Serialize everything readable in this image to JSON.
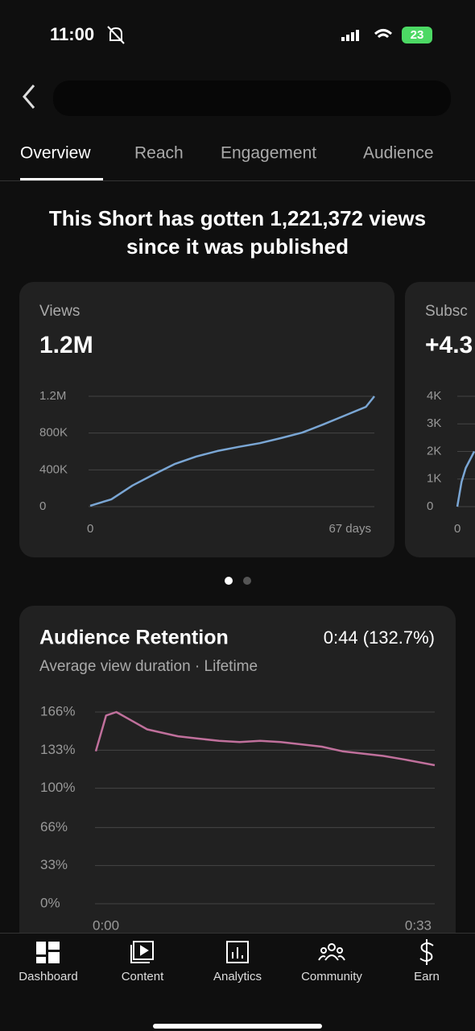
{
  "status_bar": {
    "time": "11:00",
    "battery": "23"
  },
  "tabs": [
    "Overview",
    "Reach",
    "Engagement",
    "Audience"
  ],
  "headline": [
    "This Short has gotten 1,221,372 views",
    "since it was published"
  ],
  "cards": [
    {
      "type": "line",
      "title": "Views",
      "value": "1.2M",
      "color": "#7aa6d4",
      "x": [
        0,
        5,
        10,
        15,
        20,
        25,
        30,
        35,
        40,
        45,
        50,
        55,
        60,
        65,
        67
      ],
      "values": [
        10000,
        80000,
        230000,
        350000,
        465000,
        545000,
        605000,
        650000,
        690000,
        745000,
        805000,
        895000,
        990000,
        1085000,
        1200000
      ],
      "xlim": [
        0,
        67
      ],
      "xticks": [
        0,
        {
          "value": 67,
          "label": "67 days"
        }
      ],
      "ylim": [
        0,
        1200000
      ],
      "yticks": [
        0,
        {
          "value": 400000,
          "label": "400K"
        },
        {
          "value": 800000,
          "label": "800K"
        },
        {
          "value": 1200000,
          "label": "1.2M"
        }
      ]
    },
    {
      "type": "line",
      "title": "Subsc",
      "value": "+4.3",
      "color": "#7aa6d4",
      "x": [
        0,
        1,
        2,
        4
      ],
      "values": [
        0,
        900,
        1400,
        2000
      ],
      "xlim": [
        0,
        67
      ],
      "xticks": [
        0
      ],
      "ylim": [
        0,
        4000
      ],
      "yticks": [
        0,
        {
          "value": 1000,
          "label": "1K"
        },
        {
          "value": 2000,
          "label": "2K"
        },
        {
          "value": 3000,
          "label": "3K"
        },
        {
          "value": 4000,
          "label": "4K"
        }
      ]
    }
  ],
  "retention": {
    "type": "line",
    "title": "Audience Retention",
    "value": "0:44 (132.7%)",
    "subtitle": "Average view duration · Lifetime",
    "color": "#c0709c",
    "x": [
      0,
      1,
      2,
      3,
      4,
      5,
      6,
      8,
      10,
      12,
      14,
      16,
      18,
      20,
      22,
      24,
      26,
      28,
      30,
      33
    ],
    "values": [
      132,
      163,
      166,
      161,
      156,
      151,
      149,
      145,
      143,
      141,
      140,
      141,
      140,
      138,
      136,
      132,
      130,
      128,
      125,
      120
    ],
    "xlim": [
      0,
      33
    ],
    "xticks": [
      {
        "value": 0,
        "label": "0:00"
      },
      {
        "value": 33,
        "label": "0:33"
      }
    ],
    "ylim": [
      0,
      166
    ],
    "yticks": [
      {
        "value": 0,
        "label": "0%"
      },
      {
        "value": 33,
        "label": "33%"
      },
      {
        "value": 66,
        "label": "66%"
      },
      {
        "value": 100,
        "label": "100%"
      },
      {
        "value": 133,
        "label": "133%"
      },
      {
        "value": 166,
        "label": "166%"
      }
    ]
  },
  "nav": [
    "Dashboard",
    "Content",
    "Analytics",
    "Community",
    "Earn"
  ]
}
